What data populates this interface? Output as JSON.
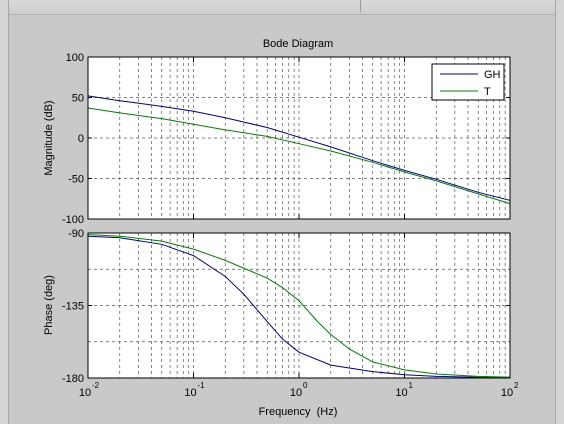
{
  "chart_data": [
    {
      "type": "line",
      "title": "Bode Diagram",
      "xlabel": "",
      "ylabel": "Magnitude (dB)",
      "xscale": "log",
      "xlim": [
        0.01,
        100
      ],
      "ylim": [
        -100,
        100
      ],
      "yticks": [
        "100",
        "50",
        "0",
        "-50",
        "-100"
      ],
      "ytick_values": [
        100,
        50,
        0,
        -50,
        -100
      ],
      "grid": true,
      "legend_position": "top-right",
      "series": [
        {
          "name": "GH",
          "color": "#00008b",
          "x": [
            0.01,
            0.02,
            0.05,
            0.1,
            0.2,
            0.5,
            1,
            2,
            5,
            10,
            20,
            50,
            100
          ],
          "y": [
            52,
            46,
            39,
            33,
            25,
            13,
            1,
            -11,
            -28,
            -40,
            -51,
            -67,
            -77
          ]
        },
        {
          "name": "T",
          "color": "#008000",
          "x": [
            0.01,
            0.02,
            0.05,
            0.1,
            0.2,
            0.5,
            1,
            2,
            5,
            10,
            20,
            50,
            100
          ],
          "y": [
            37,
            31,
            24,
            17,
            10,
            2,
            -7,
            -16,
            -30,
            -42,
            -53,
            -69,
            -81
          ]
        }
      ]
    },
    {
      "type": "line",
      "title": "",
      "xlabel": "Frequency  (Hz)",
      "ylabel": "Phase (deg)",
      "xscale": "log",
      "xlim": [
        0.01,
        100
      ],
      "ylim": [
        -180,
        -90
      ],
      "xticks_base": "10",
      "xticks_exp": [
        "-2",
        "-1",
        "0",
        "1",
        "2"
      ],
      "xtick_values": [
        0.01,
        0.1,
        1,
        10,
        100
      ],
      "yticks": [
        "-90",
        "-135",
        "-180"
      ],
      "ytick_values": [
        -90,
        -135,
        -180
      ],
      "grid": true,
      "series": [
        {
          "name": "GH",
          "color": "#00008b",
          "x": [
            0.01,
            0.02,
            0.05,
            0.1,
            0.2,
            0.3,
            0.5,
            0.7,
            1,
            2,
            5,
            10,
            20,
            50,
            100
          ],
          "y": [
            -92,
            -93,
            -97,
            -104,
            -117,
            -128,
            -145,
            -156,
            -164,
            -172,
            -176,
            -178,
            -179,
            -179.5,
            -180
          ]
        },
        {
          "name": "T",
          "color": "#008000",
          "x": [
            0.01,
            0.02,
            0.05,
            0.1,
            0.2,
            0.5,
            0.7,
            1,
            1.5,
            2,
            3,
            5,
            10,
            20,
            50,
            100
          ],
          "y": [
            -91,
            -92,
            -95,
            -100,
            -107,
            -118,
            -124,
            -132,
            -145,
            -153,
            -162,
            -170,
            -175,
            -177.5,
            -179,
            -179.5
          ]
        }
      ]
    }
  ]
}
